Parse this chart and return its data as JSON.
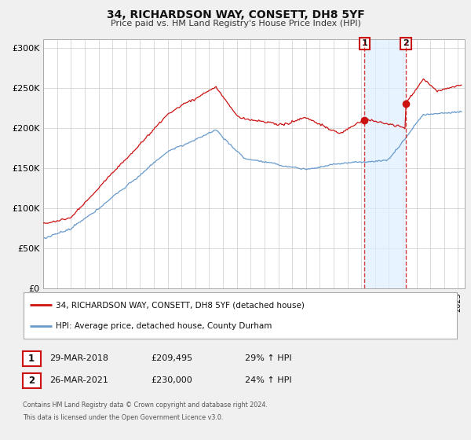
{
  "title": "34, RICHARDSON WAY, CONSETT, DH8 5YF",
  "subtitle": "Price paid vs. HM Land Registry's House Price Index (HPI)",
  "bg_color": "#f0f0f0",
  "plot_bg_color": "#ffffff",
  "red_color": "#cc1111",
  "blue_color": "#6699cc",
  "shade_color": "#ddeeff",
  "grid_color": "#cccccc",
  "ylim": [
    0,
    310000
  ],
  "yticks": [
    0,
    50000,
    100000,
    150000,
    200000,
    250000,
    300000
  ],
  "ylabel_fmt": [
    "£0",
    "£50K",
    "£100K",
    "£150K",
    "£200K",
    "£250K",
    "£300K"
  ],
  "xlim_start": 1995.0,
  "xlim_end": 2025.5,
  "marker1_x": 2018.23,
  "marker1_y": 209495,
  "marker2_x": 2021.23,
  "marker2_y": 230000,
  "legend_line1": "34, RICHARDSON WAY, CONSETT, DH8 5YF (detached house)",
  "legend_line2": "HPI: Average price, detached house, County Durham",
  "table_row1": [
    "1",
    "29-MAR-2018",
    "£209,495",
    "29% ↑ HPI"
  ],
  "table_row2": [
    "2",
    "26-MAR-2021",
    "£230,000",
    "24% ↑ HPI"
  ],
  "footer1": "Contains HM Land Registry data © Crown copyright and database right 2024.",
  "footer2": "This data is licensed under the Open Government Licence v3.0."
}
